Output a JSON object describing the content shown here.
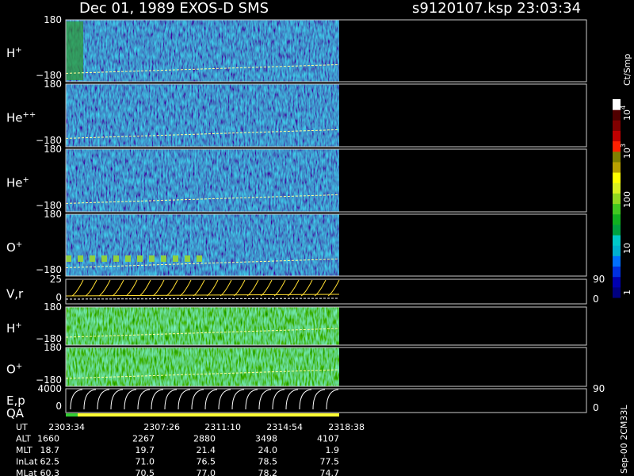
{
  "header": {
    "title": "Dec 01, 1989   EXOS-D SMS",
    "file": "s9120107.ksp  23:03:34"
  },
  "panels": [
    {
      "label": {
        "base": "H",
        "sup": "+"
      },
      "ticks": [
        "180",
        "−180"
      ]
    },
    {
      "label": {
        "base": "He",
        "sup": "++"
      },
      "ticks": [
        "180",
        "−180"
      ]
    },
    {
      "label": {
        "base": "He",
        "sup": "+"
      },
      "ticks": [
        "180",
        "−180"
      ]
    },
    {
      "label": {
        "base": "O",
        "sup": "+"
      },
      "ticks": [
        "180",
        "−180"
      ]
    },
    {
      "label": {
        "base": "V,r"
      },
      "ticks": [
        "25",
        "0"
      ],
      "right_ticks": [
        "90",
        "0"
      ]
    },
    {
      "label": {
        "base": "H",
        "sup": "+"
      },
      "ticks": [
        "180",
        "−180"
      ]
    },
    {
      "label": {
        "base": "O",
        "sup": "+"
      },
      "ticks": [
        "180",
        "−180"
      ]
    },
    {
      "label": {
        "base": "E,p"
      },
      "label2": "QA",
      "ticks": [
        "4000",
        "0"
      ],
      "right_ticks": [
        "90",
        "0"
      ]
    }
  ],
  "colorbar": {
    "unit": "Ct/Smp",
    "labels": [
      {
        "base": "10",
        "sup": "4"
      },
      {
        "base": "10",
        "sup": "3"
      },
      {
        "base": "100"
      },
      {
        "base": "10"
      },
      {
        "base": "1"
      }
    ]
  },
  "footer": {
    "rows": [
      {
        "name": "UT",
        "values": [
          "2303:34",
          "2307:26",
          "2311:10",
          "2314:54",
          "2318:38"
        ]
      },
      {
        "name": "ALT",
        "values": [
          "1660",
          "2267",
          "2880",
          "3498",
          "4107"
        ]
      },
      {
        "name": "MLT",
        "values": [
          "18.7",
          "19.7",
          "21.4",
          "24.0",
          "1.9"
        ]
      },
      {
        "name": "InLat",
        "values": [
          "62.5",
          "71.0",
          "76.5",
          "78.5",
          "77.5"
        ]
      },
      {
        "name": "MLat",
        "values": [
          "60.3",
          "70.5",
          "77.0",
          "78.2",
          "74.7"
        ]
      }
    ]
  },
  "stamp": "Sep-00  2CM33L"
}
